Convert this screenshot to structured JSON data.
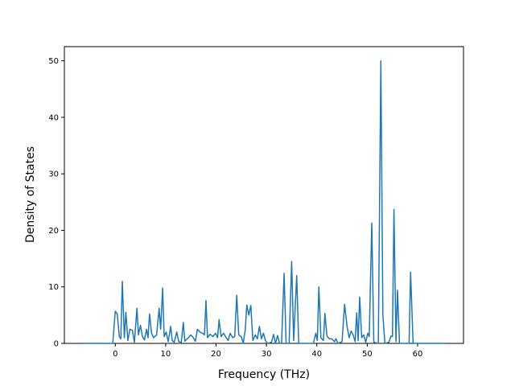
{
  "chart_data": {
    "type": "line",
    "xlabel": "Frequency (THz)",
    "ylabel": "Density of States",
    "color": "#1f77b4",
    "x": [
      -6.5,
      -0.5,
      0,
      0.4,
      0.8,
      1.1,
      1.4,
      1.8,
      2.1,
      2.5,
      2.9,
      3.4,
      3.8,
      4.3,
      4.6,
      5,
      5.4,
      5.8,
      6.2,
      6.5,
      6.8,
      7.2,
      7.6,
      8.2,
      8.7,
      9,
      9.4,
      9.7,
      10.1,
      10.5,
      11,
      11.3,
      11.7,
      12.2,
      12.6,
      13.1,
      13.5,
      13.8,
      14.5,
      15,
      15.5,
      15.9,
      16.3,
      16.8,
      17.3,
      17.7,
      18,
      18.3,
      18.8,
      19.4,
      19.9,
      20.3,
      20.6,
      21,
      21.5,
      22,
      22.4,
      22.8,
      23.3,
      23.7,
      24.1,
      24.5,
      25,
      25.4,
      25.8,
      26.1,
      26.5,
      26.9,
      27.3,
      27.8,
      28.2,
      28.6,
      29,
      29.4,
      29.8,
      30.2,
      31,
      31.4,
      31.8,
      32.2,
      32.6,
      33,
      33.5,
      33.9,
      34.5,
      35,
      35.4,
      36,
      36.4,
      39.3,
      39.8,
      40.1,
      40.4,
      40.8,
      41.3,
      41.6,
      42,
      42.5,
      43,
      43.5,
      43.8,
      44.2,
      45,
      45.5,
      46,
      46.4,
      46.8,
      47.2,
      47.6,
      47.9,
      48.2,
      48.5,
      48.9,
      49.3,
      49.7,
      50.1,
      50.4,
      50.9,
      51.3,
      52.2,
      52.7,
      53.1,
      53.5,
      54.3,
      54.7,
      55,
      55.3,
      55.7,
      56,
      56.4,
      58.3,
      58.6,
      59.1,
      65.5
    ],
    "values": [
      0,
      0,
      5.7,
      5.2,
      1.2,
      0.8,
      11,
      1,
      5.5,
      0.5,
      2.5,
      2.3,
      0.2,
      6.2,
      1.5,
      3.2,
      1.2,
      0.6,
      2.5,
      1,
      5.2,
      1.8,
      1,
      1.5,
      6.2,
      2.5,
      9.8,
      1.2,
      2,
      0.3,
      3,
      0.5,
      0.2,
      2,
      0.3,
      0.2,
      3.7,
      0.4,
      1,
      1.5,
      1,
      0.4,
      2.5,
      2,
      1.8,
      1.5,
      7.6,
      1,
      1.6,
      1.2,
      1.8,
      1,
      4.2,
      1.2,
      1.8,
      1,
      0.5,
      1.8,
      1,
      1.2,
      8.5,
      1.5,
      1.2,
      0,
      2.5,
      6.8,
      5,
      6.7,
      0.5,
      1.5,
      0.8,
      3,
      0.8,
      1.8,
      0.5,
      0,
      0.2,
      1.6,
      0,
      1.4,
      0,
      0,
      12.4,
      0,
      0,
      14.5,
      0.5,
      12,
      0,
      0,
      1.8,
      0.5,
      10,
      1,
      0.5,
      5.3,
      1.3,
      0.8,
      0.8,
      0.3,
      0.8,
      0,
      0.3,
      6.9,
      3,
      1,
      2.2,
      1.5,
      0.3,
      5.4,
      0.5,
      8.2,
      1,
      1.5,
      0.2,
      1.8,
      1.2,
      21.3,
      0.2,
      0,
      50,
      5,
      0,
      0.2,
      1.3,
      1.2,
      23.7,
      0.3,
      9.4,
      0,
      0,
      12.6,
      0,
      0
    ],
    "xlim": [
      -10.1,
      69.1
    ],
    "xticks": [
      0,
      10,
      20,
      30,
      40,
      50,
      60
    ],
    "ylim": [
      0,
      52.5
    ],
    "yticks": [
      0,
      10,
      20,
      30,
      40,
      50
    ]
  }
}
